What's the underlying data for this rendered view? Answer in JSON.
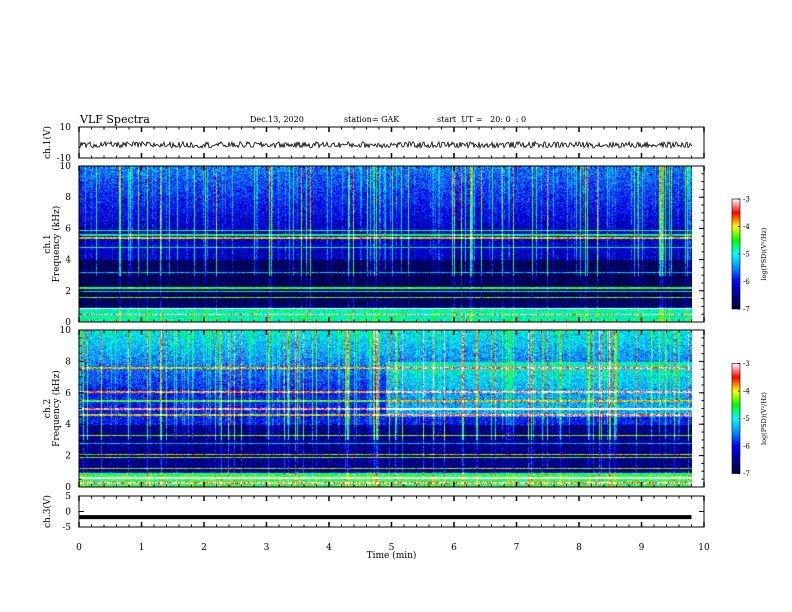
{
  "header": {
    "title": "VLF Spectra",
    "date": "Dec.13, 2020",
    "station": "station= GAK",
    "start": "start  UT =   20: 0  : 0"
  },
  "colors": {
    "colormap": [
      "#00003a",
      "#000090",
      "#0000ff",
      "#0090ff",
      "#00ffff",
      "#00ff00",
      "#ffff00",
      "#ff0000",
      "#ffffff"
    ],
    "trace": "#000000"
  },
  "chart_data": [
    {
      "type": "line",
      "panel": "ch1-waveform",
      "ylabel": "ch.1(V)",
      "ylim": [
        -10,
        10
      ],
      "y_ticks": [
        "10",
        "-10"
      ],
      "description_values": {
        "mean": -1.5,
        "noise_amplitude": 2
      }
    },
    {
      "type": "heatmap",
      "panel": "ch1-spectrogram",
      "ylabel": "Frequency (kHz)",
      "channel_label": "ch.1",
      "ylim": [
        0,
        10
      ],
      "xlim": [
        0,
        10
      ],
      "y_ticks": [
        "10",
        "8",
        "6",
        "4",
        "2",
        "0"
      ],
      "colorbar": {
        "label": "log(PSD)(V²/Hz)",
        "range": [
          -7,
          -3
        ],
        "ticks": [
          "-3",
          "-4",
          "-5",
          "-6",
          "-7"
        ]
      },
      "horizontal_lines_khz": [
        0.5,
        0.9,
        1.6,
        2.0,
        2.2,
        3.2,
        4.8,
        5.4,
        5.6,
        5.9
      ],
      "background_level": -6.3
    },
    {
      "type": "heatmap",
      "panel": "ch2-spectrogram",
      "ylabel": "Frequency (kHz)",
      "channel_label": "ch.2",
      "ylim": [
        0,
        10
      ],
      "xlim": [
        0,
        10
      ],
      "y_ticks": [
        "10",
        "8",
        "6",
        "4",
        "2",
        "0"
      ],
      "colorbar": {
        "label": "log(PSD)(V²/Hz)",
        "range": [
          -7,
          -3
        ],
        "ticks": [
          "-3",
          "-4",
          "-5",
          "-6",
          "-7"
        ]
      },
      "horizontal_lines_khz": [
        0.3,
        0.6,
        1.2,
        1.9,
        2.1,
        2.8,
        3.3,
        4.6,
        5.0,
        5.5,
        6.1,
        7.6
      ],
      "background_level": -6.0
    },
    {
      "type": "line",
      "panel": "ch3-waveform",
      "ylabel": "ch.3(V)",
      "ylim": [
        -5,
        5
      ],
      "y_ticks": [
        "5",
        "0",
        "-5"
      ],
      "x": [
        0,
        9.8
      ],
      "y": [
        -1.8,
        -1.8
      ]
    }
  ],
  "xaxis": {
    "label": "Time (min)",
    "ticks": [
      "0",
      "1",
      "2",
      "3",
      "4",
      "5",
      "6",
      "7",
      "8",
      "9",
      "10"
    ],
    "xlim": [
      0,
      10
    ],
    "data_end": 9.8
  }
}
